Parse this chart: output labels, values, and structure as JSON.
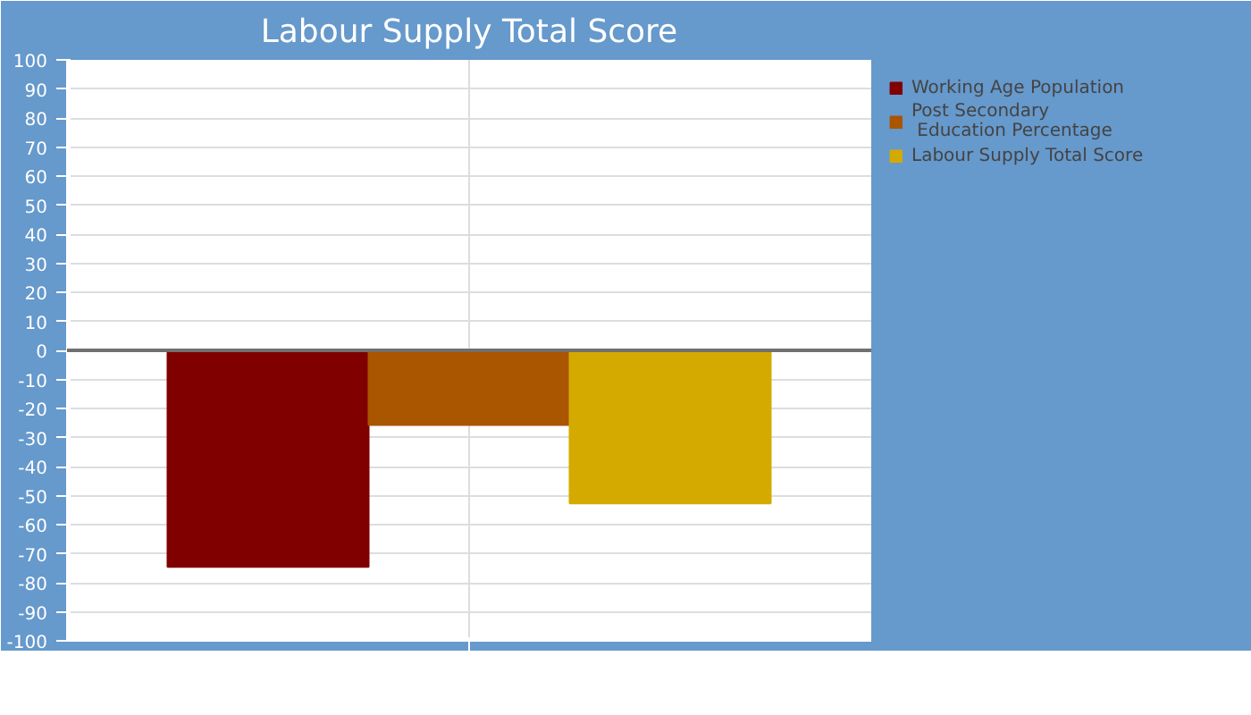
{
  "chart_data": {
    "type": "bar",
    "title": "Labour Supply Total Score",
    "categories": [
      null
    ],
    "series": [
      {
        "name": "Working Age Population",
        "color": "#800000",
        "values": [
          -74.5
        ]
      },
      {
        "name": "Post Secondary Education Percentage",
        "color": "#aa5500",
        "values": [
          -25.7
        ]
      },
      {
        "name": "Labour Supply Total Score",
        "color": "#d4aa00",
        "values": [
          -52.7
        ]
      }
    ],
    "ylim": [
      -100,
      100
    ],
    "yticks": [
      -100,
      -90,
      -80,
      -70,
      -60,
      -50,
      -40,
      -30,
      -20,
      -10,
      0,
      10,
      20,
      30,
      40,
      50,
      60,
      70,
      80,
      90,
      100
    ],
    "grid": true,
    "legend": "right",
    "tick_labels": "y",
    "ref_lines": [
      {
        "axis": "y",
        "value": 0,
        "color": "#707070"
      }
    ]
  }
}
